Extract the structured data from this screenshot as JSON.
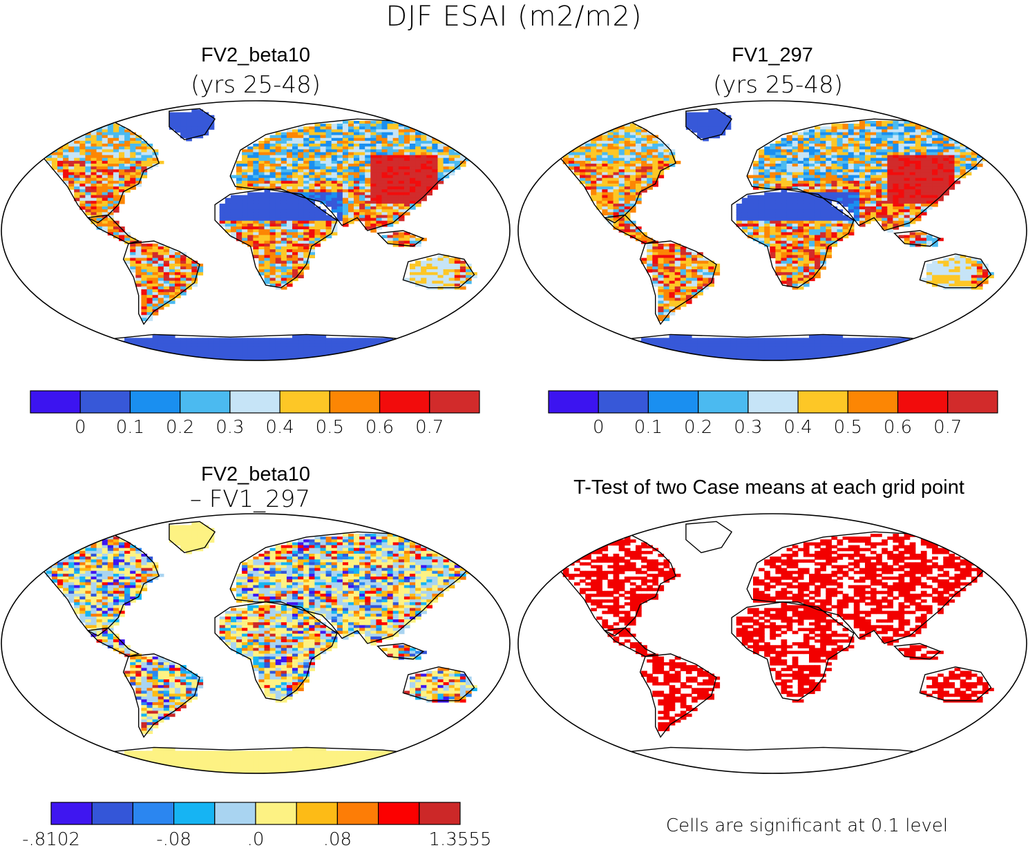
{
  "figure": {
    "title": "DJF ESAI (m2/m2)"
  },
  "colors": {
    "ocean": "#ffffff",
    "outline": "#000000",
    "red_sig": "#f20000",
    "esai": [
      "#3c14f0",
      "#3758d8",
      "#1a8ff0",
      "#4bbaf0",
      "#c6e4f7",
      "#fdc726",
      "#fc8604",
      "#f20c0c",
      "#d22b2b"
    ],
    "diff": [
      "#3f16f0",
      "#3456d8",
      "#2b86f0",
      "#16b4f3",
      "#a9d4f1",
      "#fdf283",
      "#fdbb16",
      "#fd7d06",
      "#fc0000",
      "#cc2828"
    ]
  },
  "chart_data": [
    {
      "type": "heatmap",
      "title": "FV2_beta10",
      "subtitle": "(yrs 25-48)",
      "colorbar_ticks": [
        "0",
        "0.1",
        "0.2",
        "0.3",
        "0.4",
        "0.5",
        "0.6",
        "0.7"
      ],
      "color_levels": 9
    },
    {
      "type": "heatmap",
      "title": "FV1_297",
      "subtitle": "(yrs 25-48)",
      "colorbar_ticks": [
        "0",
        "0.1",
        "0.2",
        "0.3",
        "0.4",
        "0.5",
        "0.6",
        "0.7"
      ],
      "color_levels": 9
    },
    {
      "type": "heatmap",
      "title": "FV2_beta10",
      "subtitle": "– FV1_297",
      "colorbar_ticks": [
        "-.8102",
        "-.08",
        ".0",
        ".08",
        "1.3555"
      ],
      "color_levels": 10
    },
    {
      "type": "heatmap",
      "title": "T-Test of two Case means at each grid point",
      "note": "Cells are significant at 0.1 level"
    }
  ]
}
